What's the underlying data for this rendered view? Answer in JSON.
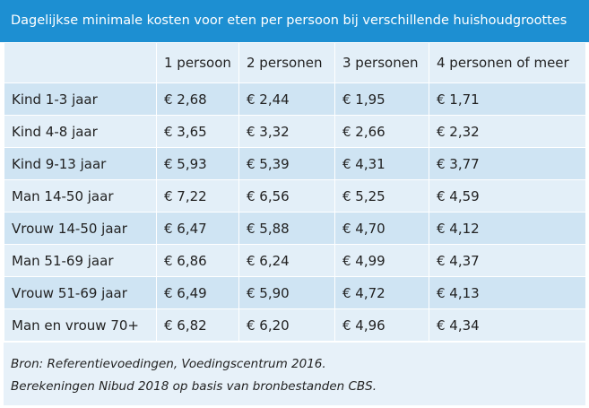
{
  "header": {
    "title": "Dagelijkse minimale kosten voor eten per persoon bij verschillende huishoudgroottes"
  },
  "table": {
    "columns": [
      "",
      "1 persoon",
      "2 personen",
      "3 personen",
      "4 personen of meer"
    ],
    "rows": [
      [
        "Kind 1-3 jaar",
        "€ 2,68",
        "€ 2,44",
        "€ 1,95",
        "€ 1,71"
      ],
      [
        "Kind 4-8 jaar",
        "€ 3,65",
        "€ 3,32",
        "€ 2,66",
        "€ 2,32"
      ],
      [
        "Kind 9-13 jaar",
        "€ 5,93",
        "€ 5,39",
        "€ 4,31",
        "€ 3,77"
      ],
      [
        "Man 14-50 jaar",
        "€ 7,22",
        "€ 6,56",
        "€ 5,25",
        "€ 4,59"
      ],
      [
        "Vrouw 14-50 jaar",
        "€ 6,47",
        "€ 5,88",
        "€ 4,70",
        "€ 4,12"
      ],
      [
        "Man 51-69 jaar",
        "€ 6,86",
        "€ 6,24",
        "€ 4,99",
        "€ 4,37"
      ],
      [
        "Vrouw 51-69 jaar",
        "€ 6,49",
        "€ 5,90",
        "€ 4,72",
        "€ 4,13"
      ],
      [
        "Man en vrouw 70+",
        "€ 6,82",
        "€ 6,20",
        "€ 4,96",
        "€ 4,34"
      ]
    ]
  },
  "footer": {
    "lines": [
      "Bron: Referentievoedingen, Voedingscentrum 2016.",
      "Berekeningen Nibud 2018 op basis van bronbestanden CBS."
    ]
  }
}
